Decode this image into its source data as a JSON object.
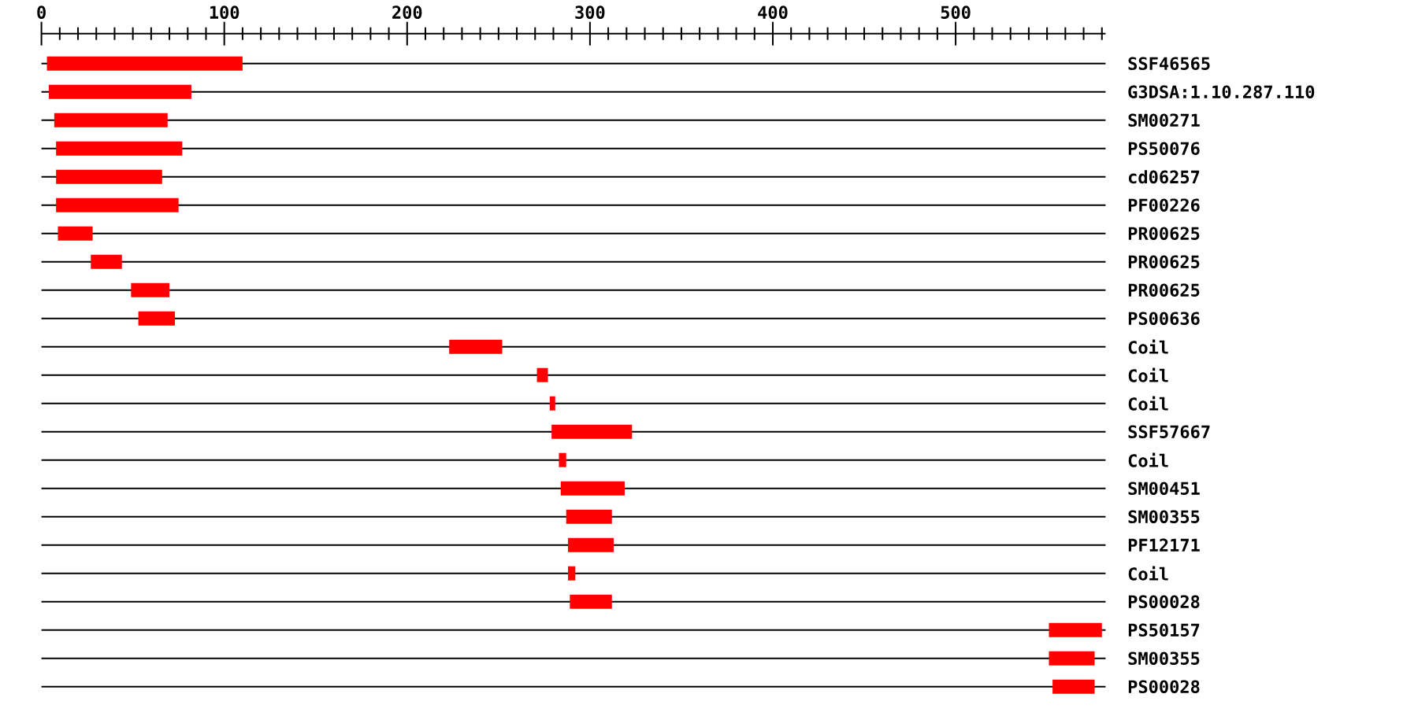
{
  "chart_data": {
    "type": "bar",
    "orientation": "horizontal",
    "color": "#ff0000",
    "grid": "y",
    "categories": [
      "SSF46565",
      "G3DSA:1.10.287.110",
      "SM00271",
      "PS50076",
      "cd06257",
      "PF00226",
      "PR00625",
      "PR00625",
      "PR00625",
      "PS00636",
      "Coil",
      "Coil",
      "Coil",
      "SSF57667",
      "Coil",
      "SM00451",
      "SM00355",
      "PF12171",
      "Coil",
      "PS00028",
      "PS50157",
      "SM00355",
      "PS00028"
    ],
    "base": [
      3,
      4,
      7,
      8,
      8,
      8,
      9,
      27,
      49,
      53,
      223,
      271,
      278,
      279,
      283,
      284,
      287,
      288,
      288,
      289,
      551,
      551,
      553
    ],
    "values": [
      107,
      78,
      62,
      69,
      58,
      67,
      19,
      17,
      21,
      20,
      29,
      6,
      3,
      44,
      4,
      35,
      25,
      25,
      4,
      23,
      29,
      25,
      23
    ],
    "xlim": [
      0,
      582
    ],
    "xticks": [
      0,
      {
        "value": 10,
        "label": null
      },
      {
        "value": 20,
        "label": null
      },
      {
        "value": 30,
        "label": null
      },
      {
        "value": 40,
        "label": null
      },
      {
        "value": 50,
        "label": null
      },
      {
        "value": 60,
        "label": null
      },
      {
        "value": 70,
        "label": null
      },
      {
        "value": 80,
        "label": null
      },
      {
        "value": 90,
        "label": null
      },
      100,
      {
        "value": 110,
        "label": null
      },
      {
        "value": 120,
        "label": null
      },
      {
        "value": 130,
        "label": null
      },
      {
        "value": 140,
        "label": null
      },
      {
        "value": 150,
        "label": null
      },
      {
        "value": 160,
        "label": null
      },
      {
        "value": 170,
        "label": null
      },
      {
        "value": 180,
        "label": null
      },
      {
        "value": 190,
        "label": null
      },
      200,
      {
        "value": 210,
        "label": null
      },
      {
        "value": 220,
        "label": null
      },
      {
        "value": 230,
        "label": null
      },
      {
        "value": 240,
        "label": null
      },
      {
        "value": 250,
        "label": null
      },
      {
        "value": 260,
        "label": null
      },
      {
        "value": 270,
        "label": null
      },
      {
        "value": 280,
        "label": null
      },
      {
        "value": 290,
        "label": null
      },
      300,
      {
        "value": 310,
        "label": null
      },
      {
        "value": 320,
        "label": null
      },
      {
        "value": 330,
        "label": null
      },
      {
        "value": 340,
        "label": null
      },
      {
        "value": 350,
        "label": null
      },
      {
        "value": 360,
        "label": null
      },
      {
        "value": 370,
        "label": null
      },
      {
        "value": 380,
        "label": null
      },
      {
        "value": 390,
        "label": null
      },
      400,
      {
        "value": 410,
        "label": null
      },
      {
        "value": 420,
        "label": null
      },
      {
        "value": 430,
        "label": null
      },
      {
        "value": 440,
        "label": null
      },
      {
        "value": 450,
        "label": null
      },
      {
        "value": 460,
        "label": null
      },
      {
        "value": 470,
        "label": null
      },
      {
        "value": 480,
        "label": null
      },
      {
        "value": 490,
        "label": null
      },
      500,
      {
        "value": 510,
        "label": null
      },
      {
        "value": 520,
        "label": null
      },
      {
        "value": 530,
        "label": null
      },
      {
        "value": 540,
        "label": null
      },
      {
        "value": 550,
        "label": null
      },
      {
        "value": 560,
        "label": null
      },
      {
        "value": 570,
        "label": null
      },
      {
        "value": 580,
        "label": null
      }
    ]
  }
}
